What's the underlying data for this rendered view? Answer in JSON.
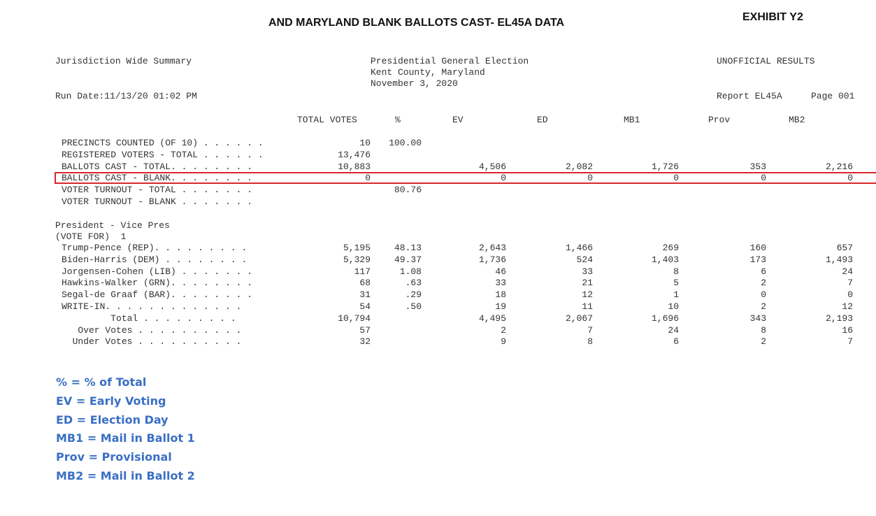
{
  "header": {
    "title": "AND MARYLAND BLANK BALLOTS CAST- EL45A DATA",
    "exhibit": "EXHIBIT Y2"
  },
  "report": {
    "summary_title": "Jurisdiction Wide Summary",
    "election": [
      "Presidential General Election",
      "Kent County, Maryland",
      "November 3, 2020"
    ],
    "status": "UNOFFICIAL RESULTS",
    "run_date": "Run Date:11/13/20 01:02 PM",
    "report_id": "Report EL45A",
    "page": "Page 001"
  },
  "table": {
    "columns": [
      "TOTAL VOTES",
      "%",
      "EV",
      "ED",
      "MB1",
      "Prov",
      "MB2"
    ],
    "summary_rows": [
      [
        "PRECINCTS COUNTED (OF 10) . . . . . .",
        "10",
        "100.00",
        null,
        null,
        null,
        null,
        null
      ],
      [
        "REGISTERED VOTERS - TOTAL . . . . . .",
        "13,476",
        null,
        null,
        null,
        null,
        null,
        null
      ],
      [
        "BALLOTS CAST - TOTAL. . . . . . . .",
        "10,883",
        null,
        "4,506",
        "2,082",
        "1,726",
        "353",
        "2,216"
      ],
      [
        "BALLOTS CAST - BLANK. . . . . . . .",
        "0",
        null,
        "0",
        "0",
        "0",
        "0",
        "0"
      ],
      [
        "VOTER TURNOUT - TOTAL . . . . . . .",
        null,
        "80.76",
        null,
        null,
        null,
        null,
        null
      ],
      [
        "VOTER TURNOUT - BLANK . . . . . . .",
        null,
        null,
        null,
        null,
        null,
        null,
        null
      ]
    ],
    "contest": {
      "title": "President - Vice Pres",
      "vote_for": "(VOTE FOR)  1"
    },
    "contest_rows": [
      [
        "Trump-Pence (REP). . . . . . . . .",
        "5,195",
        "48.13",
        "2,643",
        "1,466",
        "269",
        "160",
        "657"
      ],
      [
        "Biden-Harris (DEM) . . . . . . . .",
        "5,329",
        "49.37",
        "1,736",
        "524",
        "1,403",
        "173",
        "1,493"
      ],
      [
        "Jorgensen-Cohen (LIB) . . . . . . .",
        "117",
        "1.08",
        "46",
        "33",
        "8",
        "6",
        "24"
      ],
      [
        "Hawkins-Walker (GRN). . . . . . . .",
        "68",
        ".63",
        "33",
        "21",
        "5",
        "2",
        "7"
      ],
      [
        "Segal-de Graaf (BAR). . . . . . . .",
        "31",
        ".29",
        "18",
        "12",
        "1",
        "0",
        "0"
      ],
      [
        "WRITE-IN. . . . . . . . . . . . .",
        "54",
        ".50",
        "19",
        "11",
        "10",
        "2",
        "12"
      ],
      [
        "         Total . . . . . . . . .",
        "10,794",
        null,
        "4,495",
        "2,067",
        "1,696",
        "343",
        "2,193"
      ],
      [
        "   Over Votes . . . . . . . . . .",
        "57",
        null,
        "2",
        "7",
        "24",
        "8",
        "16"
      ],
      [
        "  Under Votes . . . . . . . . . .",
        "32",
        null,
        "9",
        "8",
        "6",
        "2",
        "7"
      ]
    ]
  },
  "legend": [
    "% = % of Total",
    "EV = Early Voting",
    "ED = Election Day",
    "MB1 = Mail in Ballot 1",
    "Prov = Provisional",
    "MB2 = Mail in Ballot 2"
  ]
}
